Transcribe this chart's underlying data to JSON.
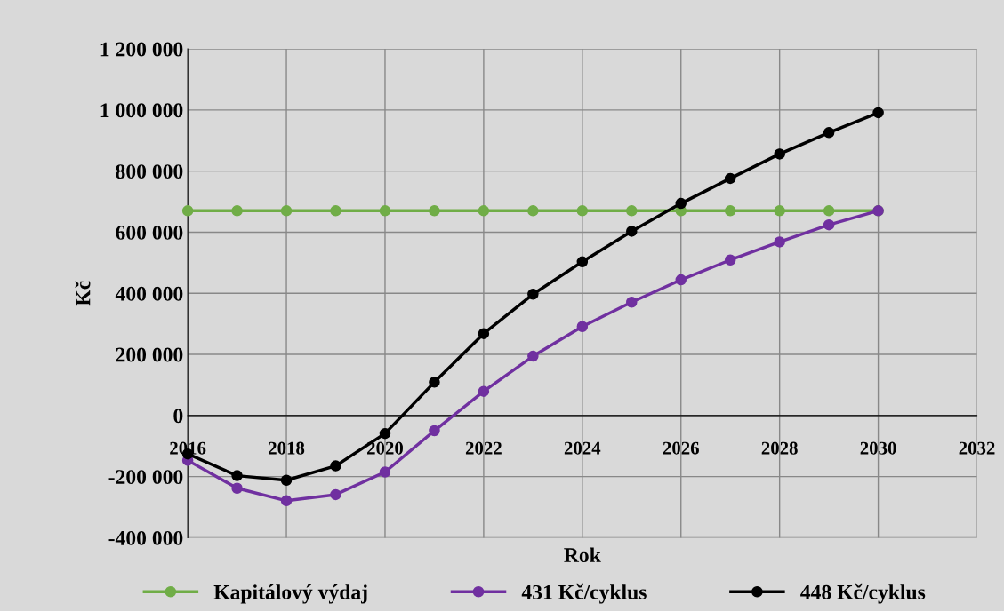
{
  "chart_data": {
    "type": "line",
    "xlabel": "Rok",
    "ylabel": "Kč",
    "x": [
      2016,
      2017,
      2018,
      2019,
      2020,
      2021,
      2022,
      2023,
      2024,
      2025,
      2026,
      2027,
      2028,
      2029,
      2030
    ],
    "series": [
      {
        "name": "Kapitálový výdaj",
        "color": "#70ad47",
        "values": [
          670000,
          670000,
          670000,
          670000,
          670000,
          670000,
          670000,
          670000,
          670000,
          670000,
          670000,
          670000,
          670000,
          670000,
          670000
        ]
      },
      {
        "name": "431 Kč/cyklus",
        "color": "#7030a0",
        "values": [
          -147000,
          -238000,
          -279000,
          -259000,
          -185000,
          -50000,
          79000,
          194000,
          291000,
          371000,
          444000,
          509000,
          568000,
          624000,
          670000
        ]
      },
      {
        "name": "448 Kč/cyklus",
        "color": "#000000",
        "values": [
          -126000,
          -197000,
          -212000,
          -165000,
          -59000,
          109000,
          268000,
          397000,
          503000,
          603000,
          694000,
          776000,
          856000,
          926000,
          991000
        ]
      }
    ],
    "xlim": [
      2016,
      2032
    ],
    "xticks": [
      2016,
      2018,
      2020,
      2022,
      2024,
      2026,
      2028,
      2030,
      2032
    ],
    "ylim": [
      -400000,
      1200000
    ],
    "yticks": [
      {
        "value": -400000,
        "label": "-400 000"
      },
      {
        "value": -200000,
        "label": "-200 000"
      },
      0,
      {
        "value": 200000,
        "label": "200 000"
      },
      {
        "value": 400000,
        "label": "400 000"
      },
      {
        "value": 600000,
        "label": "600 000"
      },
      {
        "value": 800000,
        "label": "800 000"
      },
      {
        "value": 1000000,
        "label": "1 000 000"
      },
      {
        "value": 1200000,
        "label": "1 200 000"
      }
    ],
    "grid": true,
    "legend": "bottom",
    "marker": "circle",
    "line_style": "solid"
  }
}
